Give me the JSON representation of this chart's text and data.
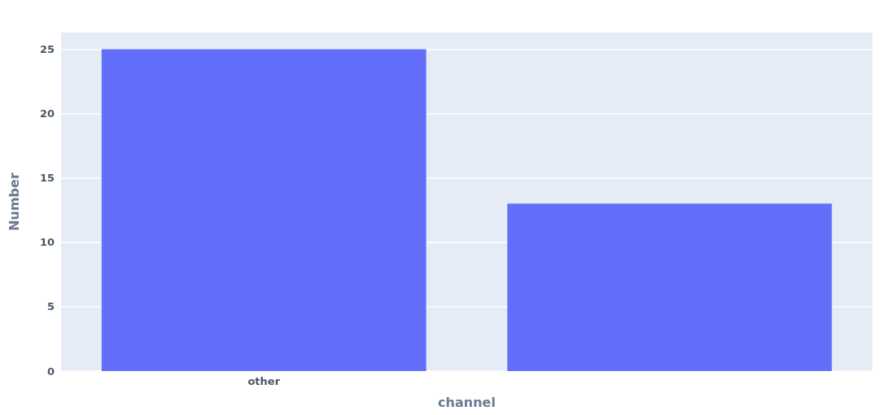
{
  "chart_data": {
    "type": "bar",
    "xlabel": "channel",
    "ylabel": "Number",
    "categories": [
      "other",
      null
    ],
    "values": [
      25,
      13
    ],
    "color": "#636efa",
    "ylim": [
      0,
      26.3
    ],
    "yticks": [
      0,
      5,
      10,
      15,
      20,
      25
    ],
    "grid": "y"
  }
}
